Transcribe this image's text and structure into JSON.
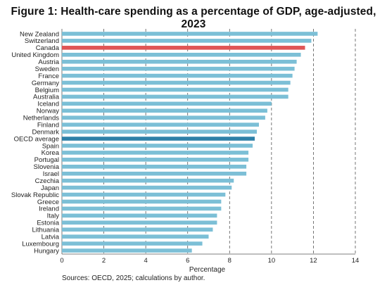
{
  "chart_data": {
    "type": "bar",
    "orientation": "horizontal",
    "title": "Figure 1: Health-care spending as a percentage of GDP, age-adjusted, 2023",
    "xlabel": "Percentage",
    "ylabel": "",
    "xlim": [
      0,
      14
    ],
    "xticks": [
      "0",
      "2",
      "4",
      "6",
      "8",
      "10",
      "12",
      "14"
    ],
    "grid": "vertical dashed",
    "source": "Sources: OECD, 2025; calculations by author.",
    "colors": {
      "default": "#7cbfd6",
      "highlight_canada": "#e05555",
      "highlight_oecd": "#2e80a8"
    },
    "categories": [
      "New Zealand",
      "Switzerland",
      "Canada",
      "United Kingdom",
      "Austria",
      "Sweden",
      "France",
      "Germany",
      "Belgium",
      "Australia",
      "Iceland",
      "Norway",
      "Netherlands",
      "Finland",
      "Denmark",
      "OECD average",
      "Spain",
      "Korea",
      "Portugal",
      "Slovenia",
      "Israel",
      "Czechia",
      "Japan",
      "Slovak Republic",
      "Greece",
      "Ireland",
      "Italy",
      "Estonia",
      "Lithuania",
      "Latvia",
      "Luxembourg",
      "Hungary"
    ],
    "values": [
      12.2,
      11.9,
      11.6,
      11.4,
      11.2,
      11.1,
      11.0,
      10.9,
      10.8,
      10.8,
      10.0,
      9.8,
      9.7,
      9.4,
      9.3,
      9.2,
      9.1,
      8.9,
      8.9,
      8.8,
      8.8,
      8.2,
      8.1,
      7.8,
      7.6,
      7.6,
      7.4,
      7.4,
      7.2,
      7.0,
      6.7,
      6.2
    ],
    "highlight": {
      "Canada": "highlight_canada",
      "OECD average": "highlight_oecd"
    }
  }
}
